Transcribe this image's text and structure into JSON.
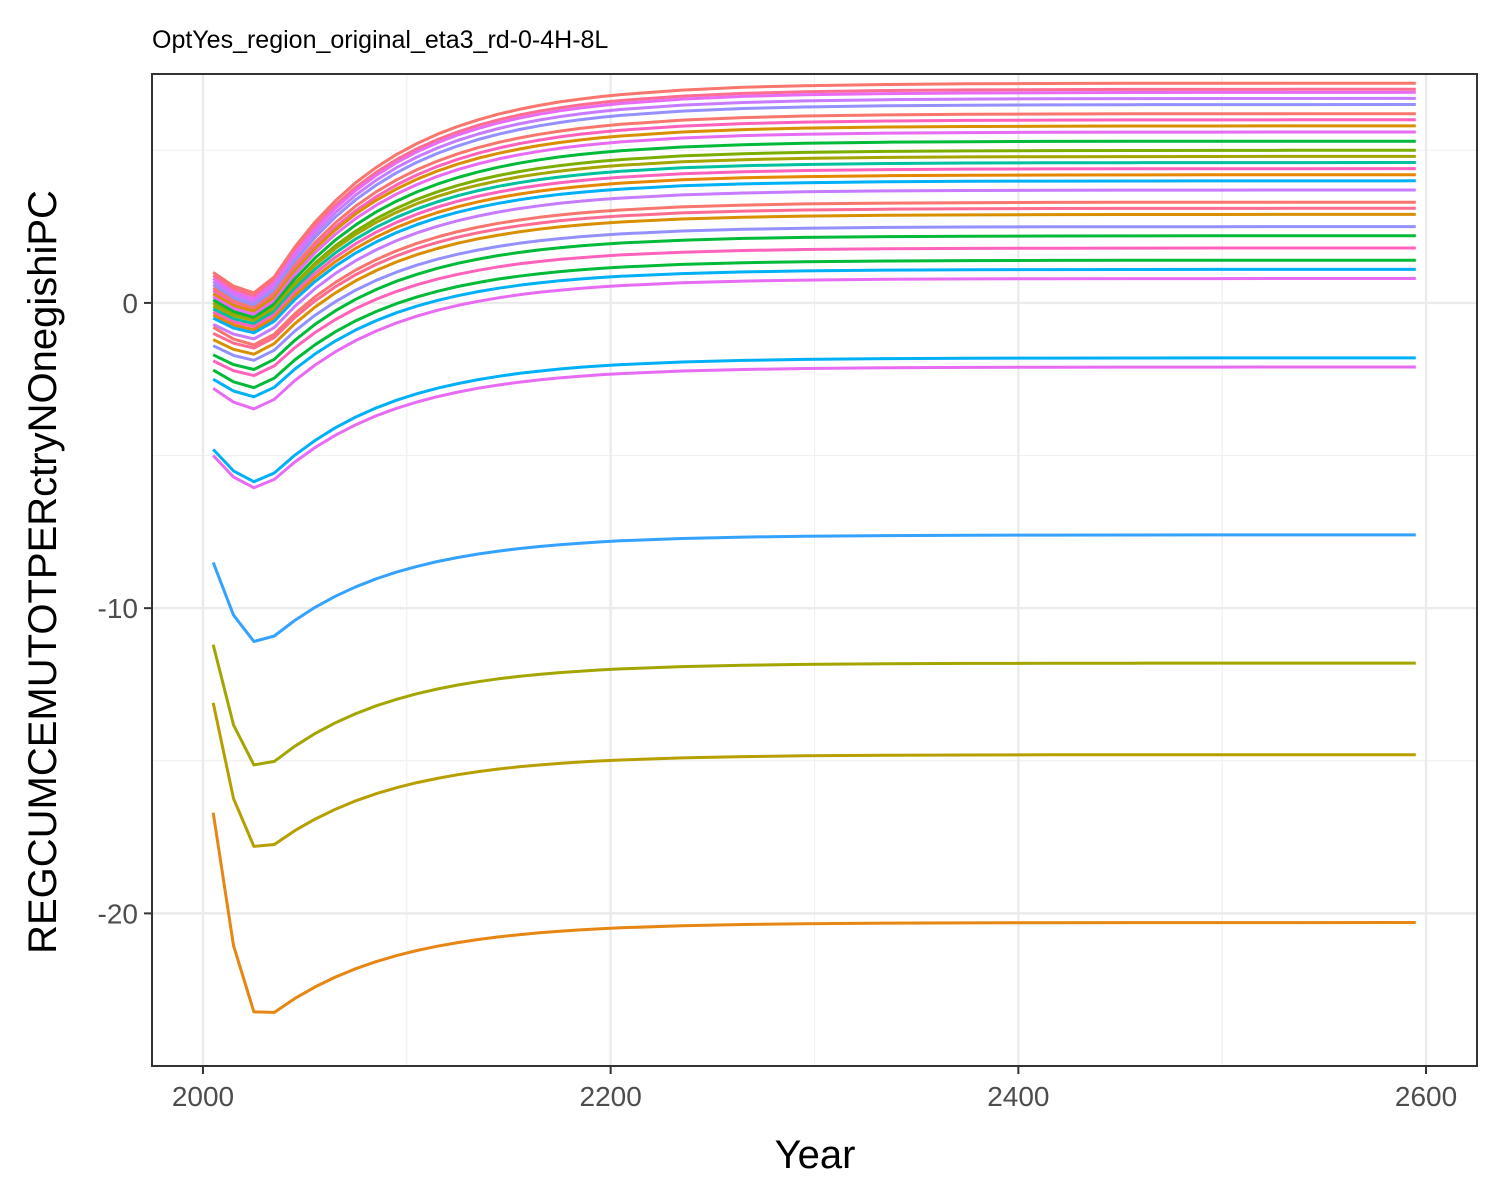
{
  "chart_data": {
    "type": "line",
    "title": "OptYes_region_original_eta3_rd-0-4H-8L",
    "xlabel": "Year",
    "ylabel": "REGCUMCEMUTOTPERctryNOnegishiPC",
    "xlim": [
      1975,
      2625
    ],
    "ylim": [
      -25,
      7.5
    ],
    "x_ticks": [
      2000,
      2200,
      2400,
      2600
    ],
    "x_tick_labels": [
      "2000",
      "2200",
      "2400",
      "2600"
    ],
    "y_ticks": [
      -20,
      -10,
      0
    ],
    "y_tick_labels": [
      "-20",
      "-10",
      "0"
    ],
    "grid": true,
    "legend": "none",
    "x": [
      2005,
      2015,
      2025,
      2035,
      2045,
      2055,
      2065,
      2075,
      2085,
      2095,
      2105,
      2115,
      2125,
      2135,
      2145,
      2155,
      2165,
      2175,
      2185,
      2195,
      2205,
      2235,
      2265,
      2295,
      2335,
      2375,
      2415,
      2455,
      2495,
      2535,
      2595
    ],
    "series_style": "one thin line per region; curves dip shortly after 2005 then rise and level off",
    "series": [
      {
        "color": "#F8766D",
        "start": 1.0,
        "dip": 0.3,
        "end": 7.2
      },
      {
        "color": "#FF6C91",
        "start": 0.9,
        "dip": 0.2,
        "end": 7.0
      },
      {
        "color": "#E76BF3",
        "start": 0.8,
        "dip": 0.1,
        "end": 6.9
      },
      {
        "color": "#C77CFF",
        "start": 0.7,
        "dip": 0.0,
        "end": 6.7
      },
      {
        "color": "#9590FF",
        "start": 0.6,
        "dip": -0.1,
        "end": 6.5
      },
      {
        "color": "#F8766D",
        "start": 0.5,
        "dip": -0.2,
        "end": 6.2
      },
      {
        "color": "#FF62BC",
        "start": 0.4,
        "dip": -0.3,
        "end": 6.0
      },
      {
        "color": "#D89000",
        "start": 0.3,
        "dip": -0.3,
        "end": 5.8
      },
      {
        "color": "#E76BF3",
        "start": 0.2,
        "dip": -0.4,
        "end": 5.6
      },
      {
        "color": "#00BA38",
        "start": 0.1,
        "dip": -0.5,
        "end": 5.3
      },
      {
        "color": "#7CAE00",
        "start": 0.0,
        "dip": -0.6,
        "end": 5.0
      },
      {
        "color": "#A3A500",
        "start": -0.1,
        "dip": -0.6,
        "end": 4.8
      },
      {
        "color": "#00C19F",
        "start": -0.2,
        "dip": -0.7,
        "end": 4.6
      },
      {
        "color": "#FF62BC",
        "start": -0.3,
        "dip": -0.8,
        "end": 4.4
      },
      {
        "color": "#E58700",
        "start": -0.4,
        "dip": -0.9,
        "end": 4.2
      },
      {
        "color": "#00B0F6",
        "start": -0.5,
        "dip": -1.0,
        "end": 4.0
      },
      {
        "color": "#C77CFF",
        "start": -0.7,
        "dip": -1.2,
        "end": 3.7
      },
      {
        "color": "#F8766D",
        "start": -0.8,
        "dip": -1.4,
        "end": 3.3
      },
      {
        "color": "#FF6C91",
        "start": -1.0,
        "dip": -1.5,
        "end": 3.1
      },
      {
        "color": "#D89000",
        "start": -1.2,
        "dip": -1.7,
        "end": 2.9
      },
      {
        "color": "#9590FF",
        "start": -1.4,
        "dip": -1.9,
        "end": 2.5
      },
      {
        "color": "#00BA38",
        "start": -1.7,
        "dip": -2.2,
        "end": 2.2
      },
      {
        "color": "#FF62BC",
        "start": -1.9,
        "dip": -2.4,
        "end": 1.8
      },
      {
        "color": "#00BA38",
        "start": -2.2,
        "dip": -2.8,
        "end": 1.4
      },
      {
        "color": "#00B0F6",
        "start": -2.5,
        "dip": -3.1,
        "end": 1.1
      },
      {
        "color": "#E76BF3",
        "start": -2.8,
        "dip": -3.5,
        "end": 0.8
      },
      {
        "color": "#00B0F6",
        "start": -4.8,
        "dip": -5.9,
        "end": -1.8
      },
      {
        "color": "#E76BF3",
        "start": -5.0,
        "dip": -6.1,
        "end": -2.1
      },
      {
        "color": "#35A2FF",
        "start": -8.5,
        "dip": -11.2,
        "end": -7.6
      },
      {
        "color": "#A3A500",
        "start": -11.2,
        "dip": -15.3,
        "end": -11.8
      },
      {
        "color": "#B79F00",
        "start": -13.1,
        "dip": -18.0,
        "end": -14.8
      },
      {
        "color": "#E68613",
        "start": -16.7,
        "dip": -23.5,
        "end": -20.3
      }
    ]
  }
}
